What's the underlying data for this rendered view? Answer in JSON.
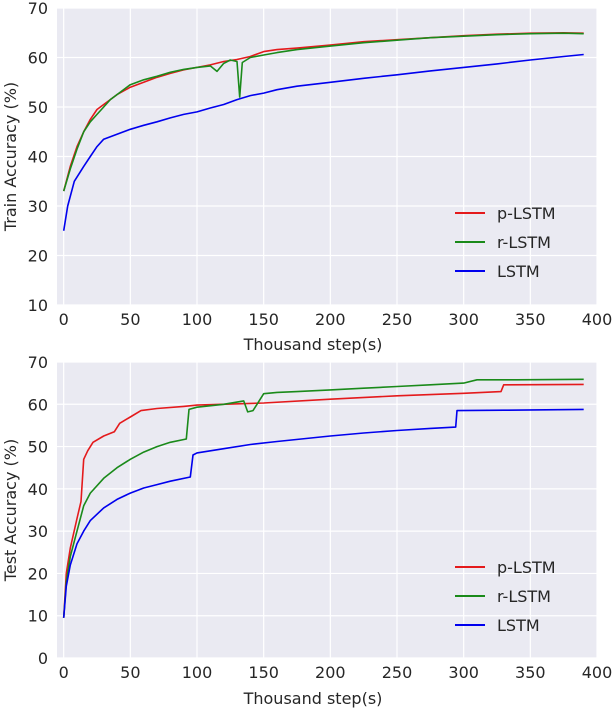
{
  "chart_data": [
    {
      "type": "line",
      "xlabel": "Thousand step(s)",
      "ylabel": "Train Accuracy (%)",
      "xlim": [
        -5,
        400
      ],
      "ylim": [
        10,
        70
      ],
      "xticks": [
        0,
        50,
        100,
        150,
        200,
        250,
        300,
        350,
        400
      ],
      "yticks": [
        10,
        20,
        30,
        40,
        50,
        60,
        70
      ],
      "grid": true,
      "legend_position": "lower-right",
      "series": [
        {
          "name": "p-LSTM",
          "color": "#e41a1c",
          "points": [
            [
              0,
              33
            ],
            [
              5,
              38
            ],
            [
              10,
              42
            ],
            [
              15,
              45
            ],
            [
              20,
              47.5
            ],
            [
              25,
              49.5
            ],
            [
              30,
              50.5
            ],
            [
              35,
              51.5
            ],
            [
              40,
              52.5
            ],
            [
              50,
              54
            ],
            [
              60,
              55
            ],
            [
              70,
              56
            ],
            [
              80,
              56.8
            ],
            [
              90,
              57.5
            ],
            [
              100,
              58
            ],
            [
              110,
              58.5
            ],
            [
              120,
              59.2
            ],
            [
              130,
              59.6
            ],
            [
              140,
              60.2
            ],
            [
              150,
              61.2
            ],
            [
              160,
              61.6
            ],
            [
              175,
              61.9
            ],
            [
              200,
              62.5
            ],
            [
              225,
              63.2
            ],
            [
              250,
              63.6
            ],
            [
              275,
              64
            ],
            [
              300,
              64.4
            ],
            [
              325,
              64.7
            ],
            [
              350,
              64.9
            ],
            [
              375,
              65
            ],
            [
              390,
              64.9
            ]
          ]
        },
        {
          "name": "r-LSTM",
          "color": "#1a8a1a",
          "points": [
            [
              0,
              33
            ],
            [
              5,
              37.5
            ],
            [
              10,
              41.5
            ],
            [
              15,
              45
            ],
            [
              20,
              47
            ],
            [
              25,
              48.5
            ],
            [
              30,
              50
            ],
            [
              35,
              51.5
            ],
            [
              40,
              52.5
            ],
            [
              50,
              54.5
            ],
            [
              60,
              55.5
            ],
            [
              70,
              56.2
            ],
            [
              80,
              57
            ],
            [
              90,
              57.6
            ],
            [
              100,
              58
            ],
            [
              110,
              58.3
            ],
            [
              115,
              57.2
            ],
            [
              120,
              58.8
            ],
            [
              125,
              59.5
            ],
            [
              130,
              59.2
            ],
            [
              132,
              52
            ],
            [
              134,
              59
            ],
            [
              140,
              60
            ],
            [
              150,
              60.5
            ],
            [
              160,
              61
            ],
            [
              175,
              61.6
            ],
            [
              200,
              62.3
            ],
            [
              225,
              63
            ],
            [
              250,
              63.5
            ],
            [
              275,
              64
            ],
            [
              300,
              64.3
            ],
            [
              325,
              64.6
            ],
            [
              350,
              64.8
            ],
            [
              375,
              64.9
            ],
            [
              390,
              64.8
            ]
          ]
        },
        {
          "name": "LSTM",
          "color": "#0000ee",
          "points": [
            [
              0,
              25
            ],
            [
              3,
              30
            ],
            [
              8,
              35
            ],
            [
              15,
              38
            ],
            [
              20,
              40
            ],
            [
              25,
              42
            ],
            [
              30,
              43.5
            ],
            [
              40,
              44.5
            ],
            [
              50,
              45.5
            ],
            [
              60,
              46.3
            ],
            [
              70,
              47
            ],
            [
              80,
              47.8
            ],
            [
              90,
              48.5
            ],
            [
              100,
              49
            ],
            [
              110,
              49.8
            ],
            [
              120,
              50.5
            ],
            [
              130,
              51.5
            ],
            [
              140,
              52.3
            ],
            [
              150,
              52.8
            ],
            [
              160,
              53.5
            ],
            [
              175,
              54.2
            ],
            [
              200,
              55
            ],
            [
              225,
              55.8
            ],
            [
              250,
              56.5
            ],
            [
              275,
              57.3
            ],
            [
              300,
              58
            ],
            [
              325,
              58.7
            ],
            [
              350,
              59.5
            ],
            [
              375,
              60.2
            ],
            [
              390,
              60.6
            ]
          ]
        }
      ]
    },
    {
      "type": "line",
      "xlabel": "Thousand step(s)",
      "ylabel": "Test Accuracy (%)",
      "xlim": [
        -5,
        400
      ],
      "ylim": [
        0,
        70
      ],
      "xticks": [
        0,
        50,
        100,
        150,
        200,
        250,
        300,
        350,
        400
      ],
      "yticks": [
        0,
        10,
        20,
        30,
        40,
        50,
        60,
        70
      ],
      "grid": true,
      "legend_position": "lower-right",
      "series": [
        {
          "name": "p-LSTM",
          "color": "#e41a1c",
          "points": [
            [
              0,
              9.5
            ],
            [
              2,
              20
            ],
            [
              5,
              26
            ],
            [
              10,
              33
            ],
            [
              13,
              37
            ],
            [
              15,
              47
            ],
            [
              18,
              49
            ],
            [
              22,
              51
            ],
            [
              30,
              52.5
            ],
            [
              38,
              53.5
            ],
            [
              42,
              55.5
            ],
            [
              50,
              57
            ],
            [
              58,
              58.5
            ],
            [
              70,
              59
            ],
            [
              90,
              59.5
            ],
            [
              100,
              59.8
            ],
            [
              150,
              60.3
            ],
            [
              200,
              61.2
            ],
            [
              250,
              62
            ],
            [
              300,
              62.6
            ],
            [
              328,
              63
            ],
            [
              330,
              64.6
            ],
            [
              390,
              64.7
            ]
          ]
        },
        {
          "name": "r-LSTM",
          "color": "#1a8a1a",
          "points": [
            [
              0,
              9.5
            ],
            [
              2,
              18
            ],
            [
              5,
              24
            ],
            [
              10,
              30
            ],
            [
              15,
              36
            ],
            [
              20,
              39
            ],
            [
              30,
              42.5
            ],
            [
              40,
              45
            ],
            [
              50,
              47
            ],
            [
              60,
              48.7
            ],
            [
              70,
              50
            ],
            [
              80,
              51
            ],
            [
              92,
              51.8
            ],
            [
              94,
              58.8
            ],
            [
              100,
              59.3
            ],
            [
              120,
              60
            ],
            [
              135,
              60.8
            ],
            [
              138,
              58.2
            ],
            [
              142,
              58.5
            ],
            [
              145,
              60
            ],
            [
              150,
              62.5
            ],
            [
              160,
              62.8
            ],
            [
              175,
              63
            ],
            [
              200,
              63.4
            ],
            [
              225,
              63.8
            ],
            [
              250,
              64.2
            ],
            [
              275,
              64.6
            ],
            [
              300,
              65
            ],
            [
              310,
              65.8
            ],
            [
              340,
              65.8
            ],
            [
              390,
              65.9
            ]
          ]
        },
        {
          "name": "LSTM",
          "color": "#0000ee",
          "points": [
            [
              0,
              9.5
            ],
            [
              2,
              17
            ],
            [
              5,
              22
            ],
            [
              10,
              27
            ],
            [
              15,
              30
            ],
            [
              20,
              32.5
            ],
            [
              30,
              35.5
            ],
            [
              40,
              37.5
            ],
            [
              50,
              39
            ],
            [
              60,
              40.2
            ],
            [
              70,
              41
            ],
            [
              80,
              41.8
            ],
            [
              95,
              42.8
            ],
            [
              97,
              48
            ],
            [
              100,
              48.5
            ],
            [
              120,
              49.5
            ],
            [
              140,
              50.5
            ],
            [
              160,
              51.2
            ],
            [
              200,
              52.5
            ],
            [
              225,
              53.2
            ],
            [
              250,
              53.8
            ],
            [
              275,
              54.3
            ],
            [
              294,
              54.6
            ],
            [
              295,
              58.5
            ],
            [
              330,
              58.6
            ],
            [
              390,
              58.8
            ]
          ]
        }
      ]
    }
  ]
}
